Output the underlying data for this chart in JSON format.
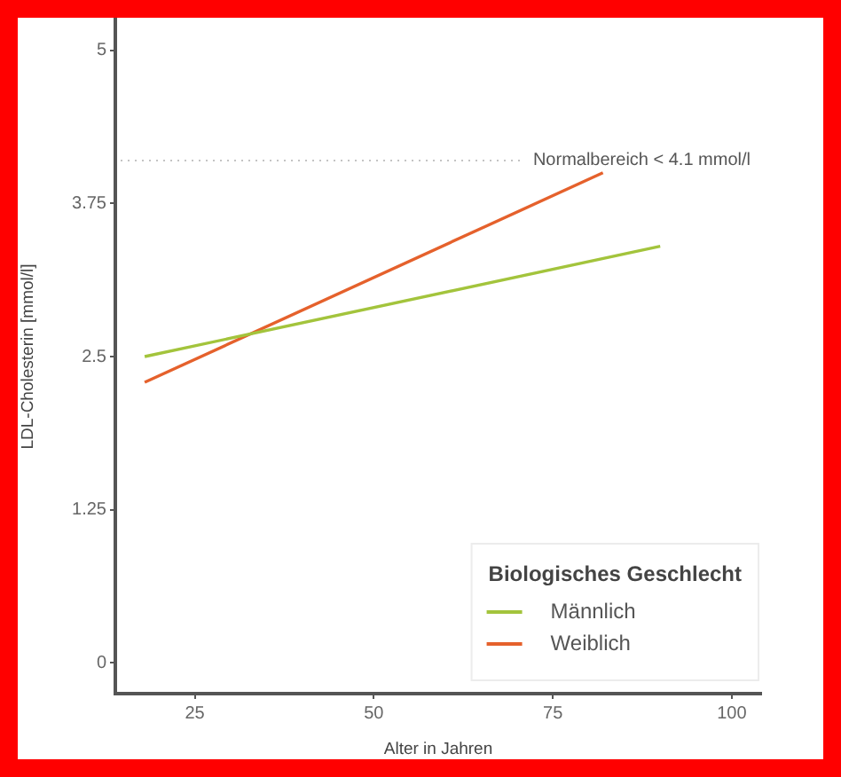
{
  "chart_data": {
    "type": "line",
    "xlabel": "Alter in Jahren",
    "ylabel": "LDL-Cholesterin [mmol/l]",
    "legend_title": "Biologisches Geschlecht",
    "series": [
      {
        "name": "Männlich",
        "color": "#a3c43c",
        "x": [
          18,
          90
        ],
        "values": [
          2.5,
          3.4
        ]
      },
      {
        "name": "Weiblich",
        "color": "#e5612c",
        "x": [
          18,
          82
        ],
        "values": [
          2.29,
          4.0
        ]
      }
    ],
    "xlim": [
      13.9,
      104.1
    ],
    "xticks": [
      25,
      50,
      75,
      100
    ],
    "ylim": [
      -0.25,
      5.25
    ],
    "yticks": [
      0,
      1.25,
      2.5,
      3.75,
      5
    ],
    "ref_lines": [
      {
        "axis": "y",
        "value": 4.1,
        "label": "Normalbereich < 4.1 mmol/l",
        "color": "#c4c4c4",
        "line_style": "dotted"
      }
    ],
    "legend": "bottom right",
    "marker": "none",
    "line_style": "solid"
  }
}
